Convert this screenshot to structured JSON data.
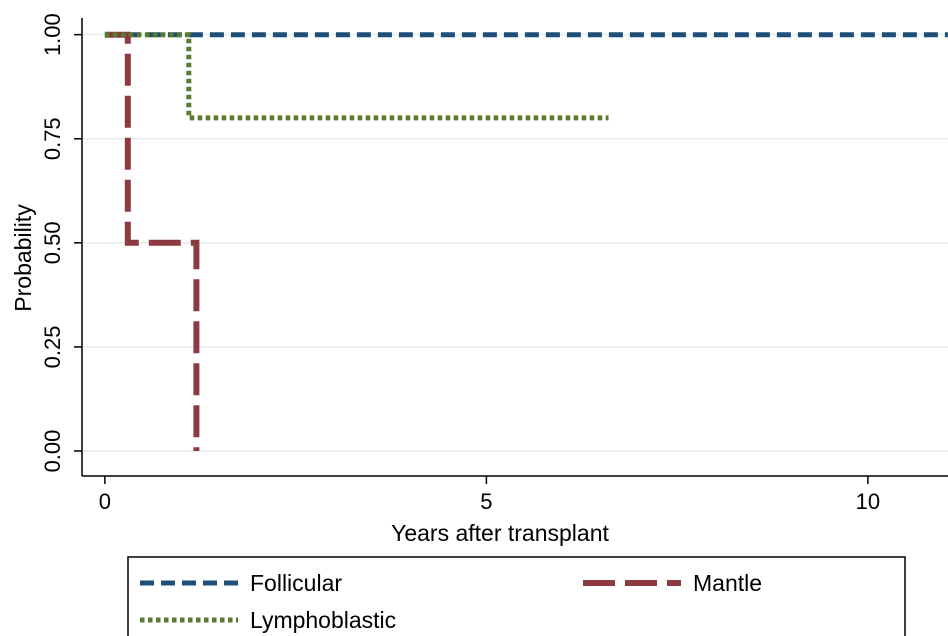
{
  "chart_data": {
    "type": "line",
    "subtype": "step (Kaplan-Meier)",
    "xlabel": "Years after transplant",
    "ylabel": "Probability",
    "xlim": [
      -0.3,
      11.05
    ],
    "ylim": [
      -0.06,
      1.04
    ],
    "xticks": [
      0,
      5,
      10
    ],
    "xtick_labels": [
      "0",
      "5",
      "10"
    ],
    "yticks": [
      0,
      0.25,
      0.5,
      0.75,
      1.0
    ],
    "ytick_labels": [
      "0.00",
      "0.25",
      "0.50",
      "0.75",
      "1.00"
    ],
    "grid": "horizontal gridlines at y ticks",
    "legend_placement": "bottom",
    "series": [
      {
        "name": "Follicular",
        "color": "#1f4e79",
        "dash": "short-dash",
        "steps": [
          [
            0,
            1.0
          ],
          [
            11.05,
            1.0
          ]
        ]
      },
      {
        "name": "Mantle",
        "color": "#8b3a3f",
        "dash": "long-dash",
        "steps": [
          [
            0,
            1.0
          ],
          [
            0.3,
            1.0
          ],
          [
            0.3,
            0.5
          ],
          [
            1.2,
            0.5
          ],
          [
            1.2,
            0.0
          ]
        ]
      },
      {
        "name": "Lymphoblastic",
        "color": "#5a7a2e",
        "dash": "dotted",
        "steps": [
          [
            0,
            1.0
          ],
          [
            1.1,
            1.0
          ],
          [
            1.1,
            0.8
          ],
          [
            6.6,
            0.8
          ]
        ]
      }
    ]
  }
}
